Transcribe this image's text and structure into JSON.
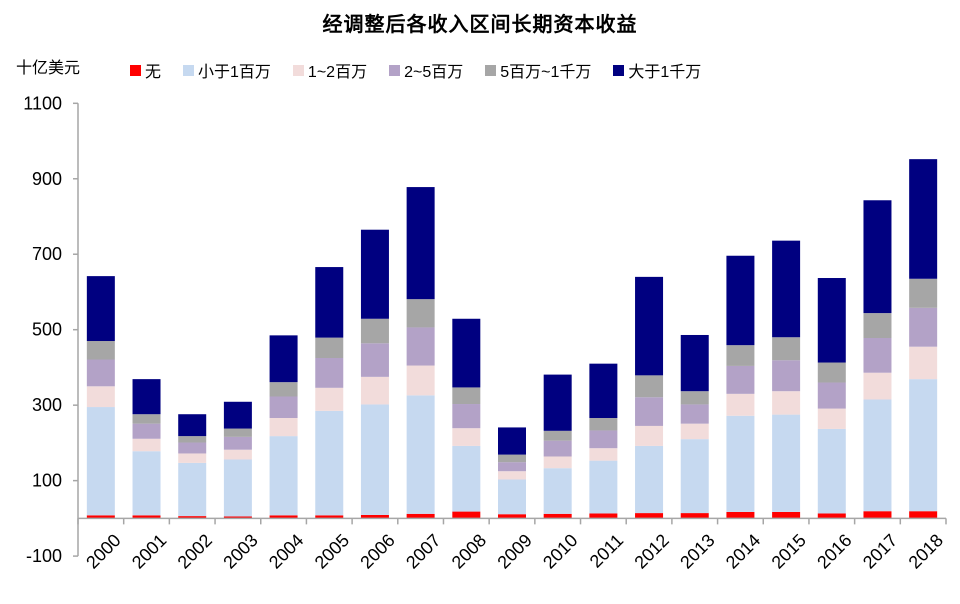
{
  "chart_data": {
    "type": "bar",
    "stacked": true,
    "title": "经调整后各收入区间长期资本收益",
    "ylabel": "十亿美元",
    "xlabel": "",
    "ylim": [
      -100,
      1100
    ],
    "yticks": [
      -100,
      100,
      300,
      500,
      700,
      900,
      1100
    ],
    "grid": false,
    "legend_position": "top",
    "categories": [
      "2000",
      "2001",
      "2002",
      "2003",
      "2004",
      "2005",
      "2006",
      "2007",
      "2008",
      "2009",
      "2010",
      "2011",
      "2012",
      "2013",
      "2014",
      "2015",
      "2016",
      "2017",
      "2018"
    ],
    "series": [
      {
        "name": "无",
        "color": "#ff0000",
        "values": [
          8,
          8,
          6,
          5,
          8,
          8,
          9,
          12,
          18,
          11,
          12,
          13,
          14,
          14,
          17,
          17,
          13,
          19,
          19
        ]
      },
      {
        "name": "小于1百万",
        "color": "#c6d9f0",
        "values": [
          287,
          170,
          141,
          151,
          210,
          277,
          293,
          314,
          174,
          92,
          121,
          140,
          178,
          196,
          255,
          258,
          224,
          296,
          350
        ]
      },
      {
        "name": "1~2百万",
        "color": "#f2dcdb",
        "values": [
          55,
          33,
          25,
          26,
          48,
          61,
          73,
          79,
          47,
          22,
          31,
          33,
          53,
          41,
          58,
          62,
          54,
          71,
          86
        ]
      },
      {
        "name": "2~5百万",
        "color": "#b3a2c7",
        "values": [
          71,
          40,
          29,
          34,
          57,
          79,
          89,
          101,
          64,
          24,
          42,
          47,
          76,
          51,
          74,
          82,
          69,
          92,
          103
        ]
      },
      {
        "name": "5百万~1千万",
        "color": "#a6a6a6",
        "values": [
          49,
          25,
          17,
          22,
          38,
          54,
          65,
          75,
          44,
          20,
          26,
          33,
          58,
          35,
          55,
          61,
          53,
          66,
          77
        ]
      },
      {
        "name": "大于1千万",
        "color": "#000080",
        "values": [
          172,
          93,
          58,
          71,
          124,
          187,
          236,
          297,
          182,
          72,
          149,
          144,
          261,
          149,
          237,
          256,
          224,
          299,
          317
        ]
      }
    ]
  }
}
